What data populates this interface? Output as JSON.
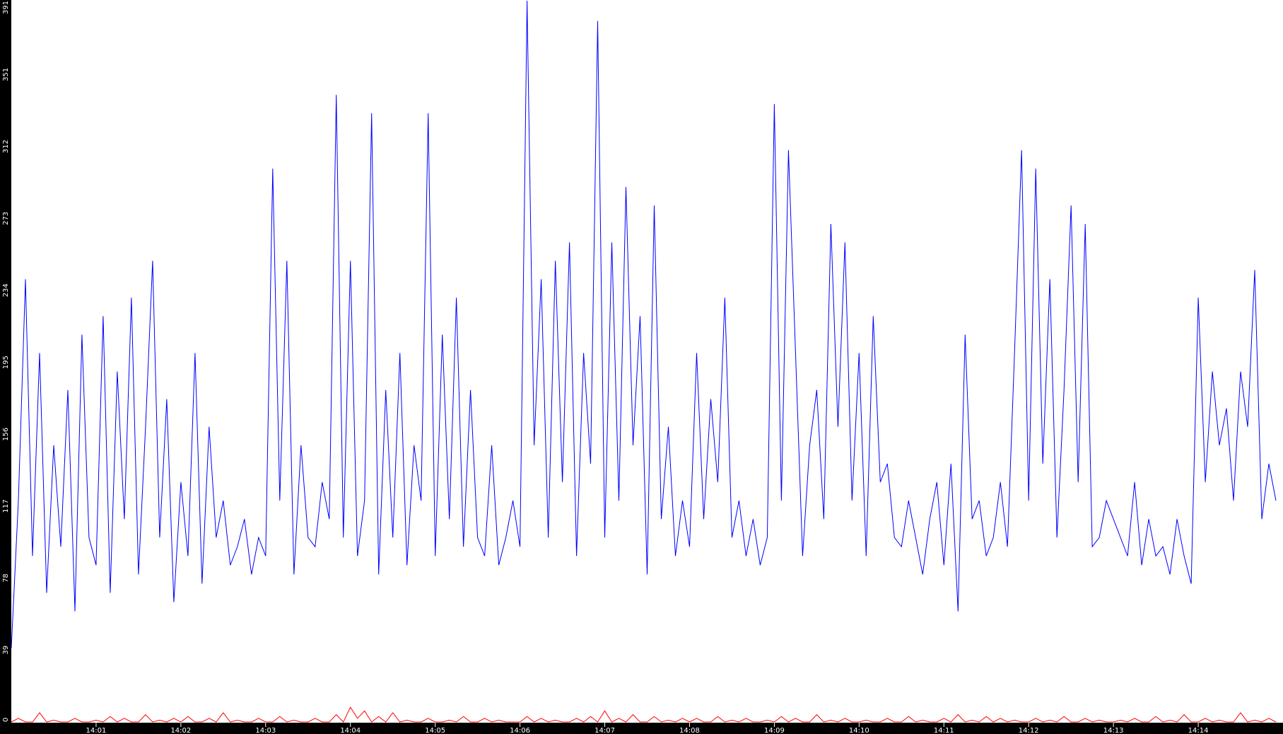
{
  "chart_data": {
    "type": "line",
    "ylim": [
      0,
      391
    ],
    "y_ticks": [
      "0",
      "39",
      "78",
      "117",
      "156",
      "195",
      "234",
      "273",
      "312",
      "351",
      "391"
    ],
    "x_ticks": [
      "14:01",
      "14:02",
      "14:03",
      "14:04",
      "14:05",
      "14:06",
      "14:07",
      "14:08",
      "14:09",
      "14:10",
      "14:11",
      "14:12",
      "14:13",
      "14:14"
    ],
    "x_range": [
      "14:00:00",
      "14:15:00"
    ],
    "x_step_seconds": 5,
    "grid": false,
    "colors": {
      "background": "#ffffff",
      "axis": "#000000",
      "series_1": "#0000ff",
      "series_2": "#ff0000",
      "tick_text": "#ffffff"
    },
    "series": [
      {
        "color": "#0000ff",
        "values": [
          40,
          120,
          240,
          90,
          200,
          70,
          150,
          95,
          180,
          60,
          210,
          100,
          85,
          220,
          70,
          190,
          110,
          230,
          80,
          160,
          250,
          100,
          175,
          65,
          130,
          90,
          200,
          75,
          160,
          100,
          120,
          85,
          95,
          110,
          80,
          100,
          90,
          300,
          120,
          250,
          80,
          150,
          100,
          95,
          130,
          110,
          340,
          100,
          250,
          90,
          120,
          330,
          80,
          180,
          100,
          200,
          85,
          150,
          120,
          330,
          90,
          210,
          110,
          230,
          95,
          180,
          100,
          90,
          150,
          85,
          100,
          120,
          95,
          391,
          150,
          240,
          100,
          250,
          130,
          260,
          90,
          200,
          140,
          380,
          100,
          260,
          120,
          290,
          150,
          220,
          80,
          280,
          110,
          160,
          90,
          120,
          95,
          200,
          110,
          175,
          130,
          230,
          100,
          120,
          90,
          110,
          85,
          100,
          335,
          120,
          310,
          200,
          90,
          150,
          180,
          110,
          270,
          160,
          260,
          120,
          200,
          90,
          220,
          130,
          140,
          100,
          95,
          120,
          100,
          80,
          110,
          130,
          85,
          140,
          60,
          210,
          110,
          120,
          90,
          100,
          130,
          95,
          200,
          310,
          120,
          300,
          140,
          240,
          100,
          180,
          280,
          130,
          270,
          95,
          100,
          120,
          110,
          100,
          90,
          130,
          85,
          110,
          90,
          95,
          80,
          110,
          90,
          75,
          230,
          130,
          190,
          150,
          170,
          120,
          190,
          160,
          245,
          110,
          140,
          120
        ]
      },
      {
        "color": "#ff0000",
        "values": [
          0,
          2,
          0,
          0,
          5,
          0,
          1,
          0,
          0,
          2,
          0,
          0,
          1,
          0,
          3,
          0,
          2,
          0,
          0,
          4,
          0,
          1,
          0,
          2,
          0,
          3,
          0,
          0,
          2,
          0,
          5,
          0,
          1,
          0,
          0,
          2,
          0,
          0,
          3,
          0,
          1,
          0,
          0,
          2,
          0,
          0,
          4,
          0,
          8,
          2,
          6,
          0,
          3,
          0,
          5,
          0,
          1,
          0,
          0,
          2,
          0,
          0,
          1,
          0,
          3,
          0,
          0,
          2,
          0,
          1,
          0,
          0,
          0,
          3,
          0,
          2,
          0,
          1,
          0,
          0,
          2,
          0,
          3,
          0,
          6,
          0,
          2,
          0,
          4,
          0,
          0,
          3,
          0,
          1,
          0,
          2,
          0,
          2,
          0,
          0,
          3,
          0,
          1,
          0,
          2,
          0,
          0,
          1,
          0,
          3,
          0,
          2,
          0,
          0,
          4,
          0,
          1,
          0,
          2,
          0,
          0,
          1,
          0,
          0,
          2,
          0,
          0,
          3,
          0,
          1,
          0,
          0,
          2,
          0,
          4,
          0,
          1,
          0,
          3,
          0,
          2,
          0,
          1,
          0,
          0,
          2,
          0,
          1,
          0,
          3,
          0,
          0,
          2,
          0,
          1,
          0,
          0,
          1,
          0,
          2,
          0,
          0,
          3,
          0,
          1,
          0,
          4,
          0,
          0,
          2,
          0,
          1,
          0,
          0,
          5,
          0,
          1,
          0,
          2,
          0
        ]
      }
    ]
  }
}
